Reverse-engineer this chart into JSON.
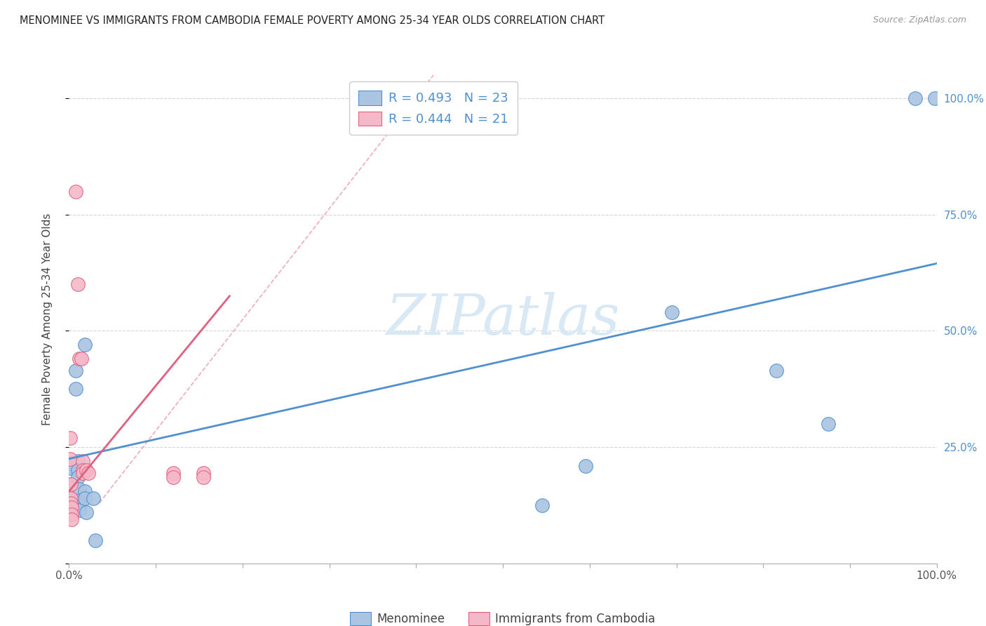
{
  "title": "MENOMINEE VS IMMIGRANTS FROM CAMBODIA FEMALE POVERTY AMONG 25-34 YEAR OLDS CORRELATION CHART",
  "source": "Source: ZipAtlas.com",
  "ylabel": "Female Poverty Among 25-34 Year Olds",
  "ylabel_right_ticks": [
    "100.0%",
    "75.0%",
    "50.0%",
    "25.0%"
  ],
  "ylabel_right_vals": [
    1.0,
    0.75,
    0.5,
    0.25
  ],
  "menominee_color": "#aac4e2",
  "cambodia_color": "#f5b8c8",
  "trendline_blue_color": "#5090d0",
  "trendline_pink_color": "#e06080",
  "dashed_color": "#f0a0b8",
  "watermark_color": "#d8e8f4",
  "menominee_data": [
    [
      0.002,
      0.215
    ],
    [
      0.002,
      0.205
    ],
    [
      0.002,
      0.17
    ],
    [
      0.002,
      0.14
    ],
    [
      0.002,
      0.12
    ],
    [
      0.008,
      0.415
    ],
    [
      0.008,
      0.375
    ],
    [
      0.01,
      0.22
    ],
    [
      0.01,
      0.2
    ],
    [
      0.01,
      0.185
    ],
    [
      0.012,
      0.16
    ],
    [
      0.012,
      0.135
    ],
    [
      0.012,
      0.125
    ],
    [
      0.012,
      0.115
    ],
    [
      0.018,
      0.47
    ],
    [
      0.018,
      0.155
    ],
    [
      0.018,
      0.14
    ],
    [
      0.02,
      0.11
    ],
    [
      0.028,
      0.14
    ],
    [
      0.03,
      0.05
    ],
    [
      0.545,
      0.125
    ],
    [
      0.595,
      0.21
    ],
    [
      0.695,
      0.54
    ],
    [
      0.815,
      0.415
    ],
    [
      0.875,
      0.3
    ],
    [
      0.975,
      1.0
    ],
    [
      0.998,
      1.0
    ]
  ],
  "cambodia_data": [
    [
      0.001,
      0.27
    ],
    [
      0.001,
      0.225
    ],
    [
      0.002,
      0.17
    ],
    [
      0.002,
      0.14
    ],
    [
      0.002,
      0.13
    ],
    [
      0.003,
      0.12
    ],
    [
      0.003,
      0.105
    ],
    [
      0.003,
      0.095
    ],
    [
      0.008,
      0.8
    ],
    [
      0.01,
      0.6
    ],
    [
      0.012,
      0.44
    ],
    [
      0.014,
      0.44
    ],
    [
      0.016,
      0.22
    ],
    [
      0.016,
      0.2
    ],
    [
      0.016,
      0.195
    ],
    [
      0.02,
      0.2
    ],
    [
      0.022,
      0.195
    ],
    [
      0.12,
      0.195
    ],
    [
      0.12,
      0.185
    ],
    [
      0.155,
      0.195
    ],
    [
      0.155,
      0.185
    ]
  ],
  "blue_trendline": [
    [
      0.0,
      0.225
    ],
    [
      1.0,
      0.645
    ]
  ],
  "pink_trendline": [
    [
      0.0,
      0.155
    ],
    [
      0.185,
      0.575
    ]
  ],
  "pink_dashed_line": [
    [
      0.035,
      0.13
    ],
    [
      0.42,
      1.05
    ]
  ],
  "xmin": 0.0,
  "xmax": 1.0,
  "ymin": 0.0,
  "ymax": 1.05
}
